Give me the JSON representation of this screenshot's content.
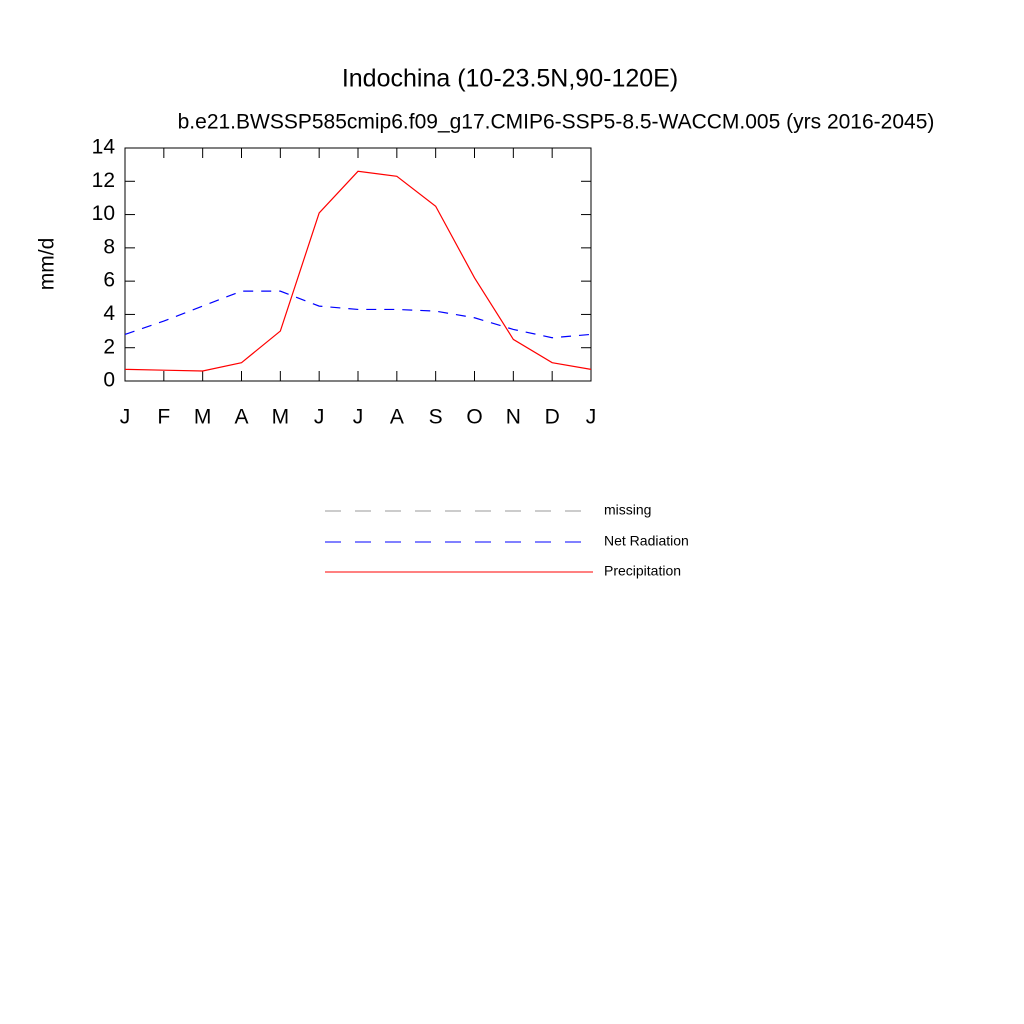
{
  "chart_data": {
    "type": "line",
    "title": "Indochina (10-23.5N,90-120E)",
    "subtitle": "b.e21.BWSSP585cmip6.f09_g17.CMIP6-SSP5-8.5-WACCM.005 (yrs 2016-2045)",
    "y_label": "mm/d",
    "categories": [
      "J",
      "F",
      "M",
      "A",
      "M",
      "J",
      "J",
      "A",
      "S",
      "O",
      "N",
      "D",
      "J"
    ],
    "series": [
      {
        "name": "missing",
        "color": "#999999",
        "style": "dashed",
        "values": [
          null,
          null,
          null,
          null,
          null,
          null,
          null,
          null,
          null,
          null,
          null,
          null,
          null
        ]
      },
      {
        "name": "Net Radiation",
        "color": "#0000ff",
        "style": "dashed",
        "values": [
          2.8,
          3.6,
          4.5,
          5.4,
          5.4,
          4.5,
          4.3,
          4.3,
          4.2,
          3.8,
          3.1,
          2.6,
          2.8
        ]
      },
      {
        "name": "Precipitation",
        "color": "#ff0000",
        "style": "solid",
        "values": [
          0.7,
          0.65,
          0.6,
          1.1,
          3.0,
          10.1,
          12.6,
          12.3,
          10.5,
          6.2,
          2.5,
          1.1,
          0.7
        ]
      }
    ],
    "ylim": [
      0,
      14
    ],
    "yticks": [
      0,
      2,
      4,
      6,
      8,
      10,
      12,
      14
    ]
  }
}
